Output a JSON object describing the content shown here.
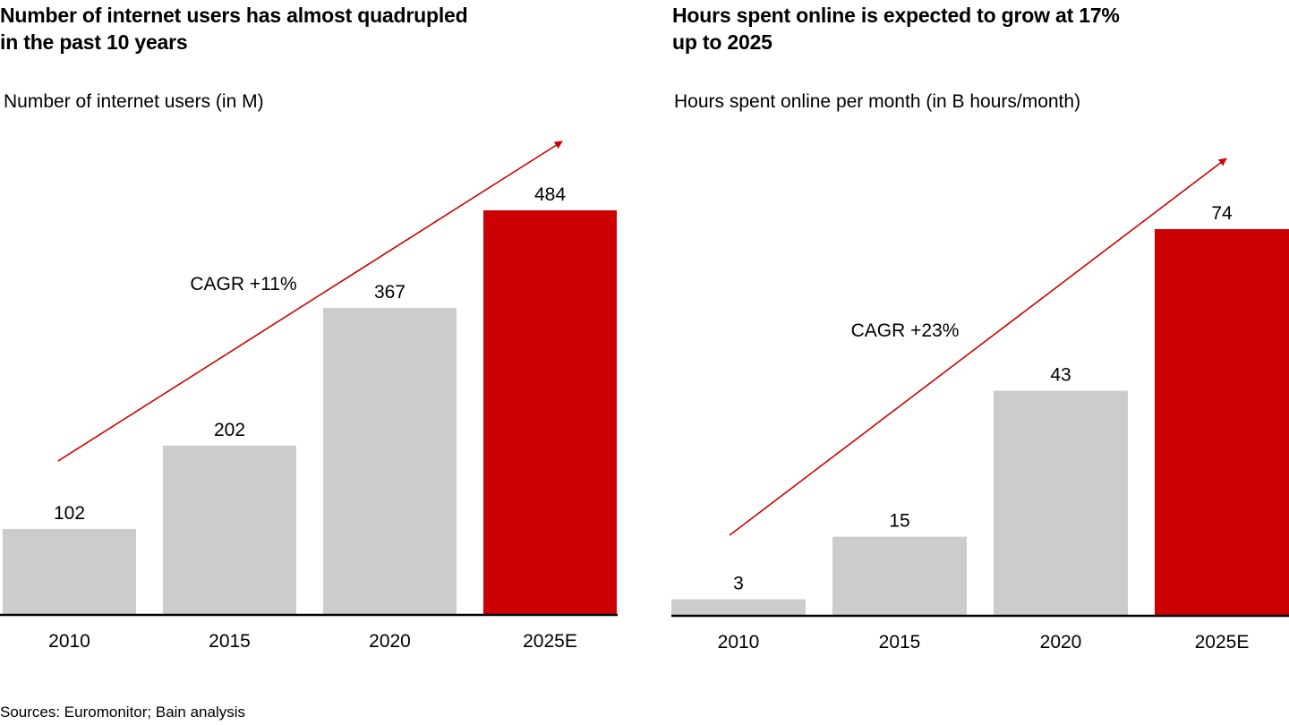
{
  "colors": {
    "bar_default": "#cccccc",
    "bar_highlight": "#cc0000",
    "arrow": "#cc0000",
    "axis": "#000000",
    "text": "#000000"
  },
  "footer": {
    "source": "Sources: Euromonitor; Bain analysis"
  },
  "chart_data": [
    {
      "type": "bar",
      "title": "Number of internet users has almost quadrupled in the past 10 years",
      "title_lines": [
        "Number of internet users has almost quadrupled",
        "in the past 10 years"
      ],
      "subtitle": "Number of internet users (in M)",
      "xlabel": "",
      "ylabel": "",
      "categories": [
        "2010",
        "2015",
        "2020",
        "2025E"
      ],
      "values": [
        102,
        202,
        367,
        484
      ],
      "value_labels": [
        "102",
        "202",
        "367",
        "484"
      ],
      "highlight": [
        false,
        false,
        false,
        true
      ],
      "ylim": [
        0,
        484
      ],
      "grid": false,
      "legend": "none",
      "annotation": {
        "text": "CAGR +11%",
        "type": "growth-arrow"
      }
    },
    {
      "type": "bar",
      "title": "Hours spent online is expected to grow at 17% up to 2025",
      "title_lines": [
        "Hours spent online is expected to grow at 17%",
        "up to 2025"
      ],
      "subtitle": "Hours spent online per month (in B hours/month)",
      "xlabel": "",
      "ylabel": "",
      "categories": [
        "2010",
        "2015",
        "2020",
        "2025E"
      ],
      "values": [
        3,
        15,
        43,
        74
      ],
      "value_labels": [
        "3",
        "15",
        "43",
        "74"
      ],
      "highlight": [
        false,
        false,
        false,
        true
      ],
      "ylim": [
        0,
        74
      ],
      "grid": false,
      "legend": "none",
      "annotation": {
        "text": "CAGR +23%",
        "type": "growth-arrow"
      }
    }
  ]
}
